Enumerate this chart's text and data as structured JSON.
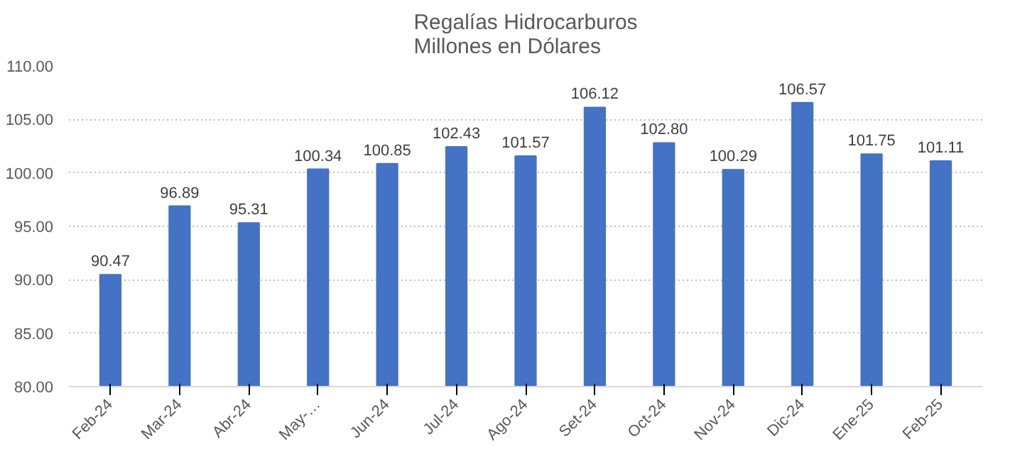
{
  "chart_data": {
    "type": "bar",
    "title": "Regalías Hidrocarburos\nMillones en Dólares",
    "categories": [
      "Feb-24",
      "Mar-24",
      "Abr-24",
      "May-…",
      "Jun-24",
      "Jul-24",
      "Ago-24",
      "Set-24",
      "Oct-24",
      "Nov-24",
      "Dic-24",
      "Ene-25",
      "Feb-25"
    ],
    "values": [
      90.47,
      96.89,
      95.31,
      100.34,
      100.85,
      102.43,
      101.57,
      106.12,
      102.8,
      100.29,
      106.57,
      101.75,
      101.11
    ],
    "color": "#4472c4",
    "ylim": [
      80,
      110
    ],
    "yticks": [
      {
        "value": 80,
        "label": "80.00"
      },
      {
        "value": 85,
        "label": "85.00"
      },
      {
        "value": 90,
        "label": "90.00"
      },
      {
        "value": 95,
        "label": "95.00"
      },
      {
        "value": 100,
        "label": "100.00"
      },
      {
        "value": 105,
        "label": "105.00"
      },
      {
        "value": 110,
        "label": "110.00"
      }
    ],
    "value_labels": [
      "90.47",
      "96.89",
      "95.31",
      "100.34",
      "100.85",
      "102.43",
      "101.57",
      "106.12",
      "102.80",
      "100.29",
      "106.57",
      "101.75",
      "101.11"
    ],
    "grid": "y",
    "line_style": "dotted"
  }
}
